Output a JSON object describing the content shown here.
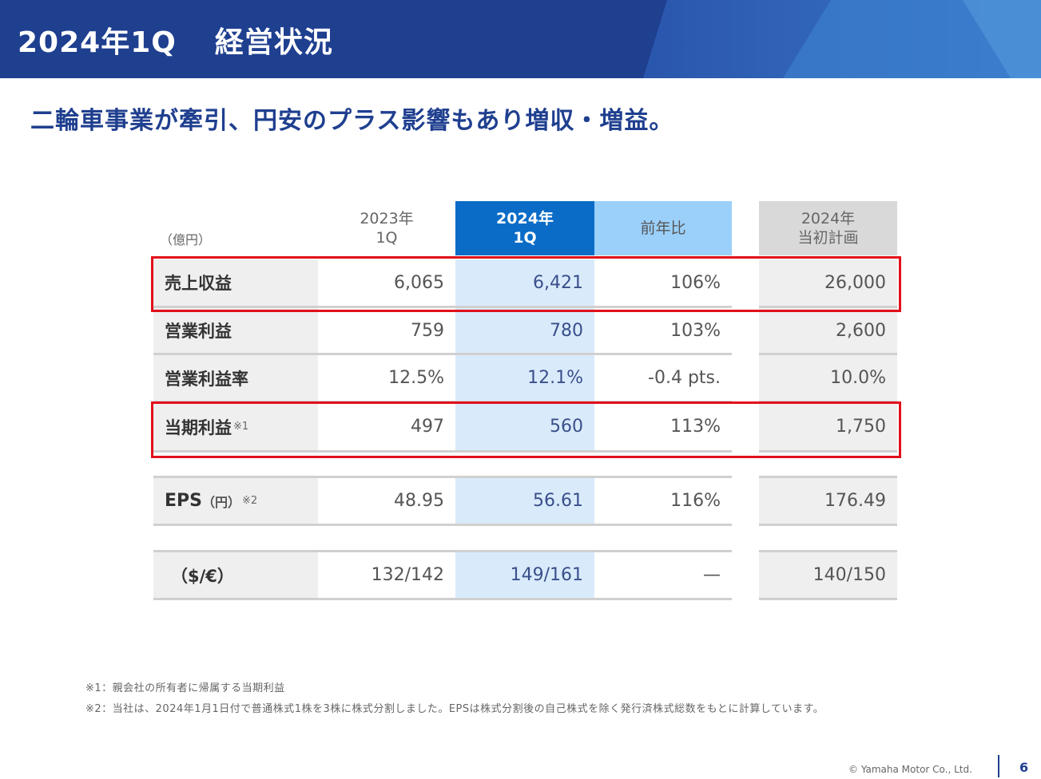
{
  "slide": {
    "title_period": "2024年1Q",
    "title_main": "経営状況",
    "headline": "二輪車事業が牽引、円安のプラス影響もあり増収・増益。",
    "page_number": "6",
    "copyright": "© Yamaha Motor Co., Ltd."
  },
  "table": {
    "unit": "（億円）",
    "col_2023": [
      "2023年",
      "1Q"
    ],
    "col_2024": [
      "2024年",
      "1Q"
    ],
    "col_yoy": "前年比",
    "col_plan": [
      "2024年",
      "当初計画"
    ],
    "rows": [
      {
        "label": "売上収益",
        "note": "",
        "v2023": "6,065",
        "v2024": "6,421",
        "yoy": "106%",
        "plan": "26,000"
      },
      {
        "label": "営業利益",
        "note": "",
        "v2023": "759",
        "v2024": "780",
        "yoy": "103%",
        "plan": "2,600"
      },
      {
        "label": "営業利益率",
        "note": "",
        "v2023": "12.5%",
        "v2024": "12.1%",
        "yoy": "-0.4 pts.",
        "plan": "10.0%"
      },
      {
        "label": "当期利益",
        "note": "※1",
        "v2023": "497",
        "v2024": "560",
        "yoy": "113%",
        "plan": "1,750"
      }
    ],
    "eps": {
      "label": "EPS",
      "unit": "（円）",
      "note": "※2",
      "v2023": "48.95",
      "v2024": "56.61",
      "yoy": "116%",
      "plan": "176.49"
    },
    "fx": {
      "label": "（$/€）",
      "v2023": "132/142",
      "v2024": "149/161",
      "yoy": "—",
      "plan": "140/150"
    }
  },
  "footnotes": [
    "※1：親会社の所有者に帰属する当期利益",
    "※2：当社は、2024年1月1日付で普通株式1株を3株に株式分割しました。EPSは株式分割後の自己株式を除く発行済株式総数をもとに計算しています。"
  ],
  "colors": {
    "header_bg": "#1f3f8f",
    "accent_col": "#0b6cc7",
    "highlight": "#e1101a"
  }
}
